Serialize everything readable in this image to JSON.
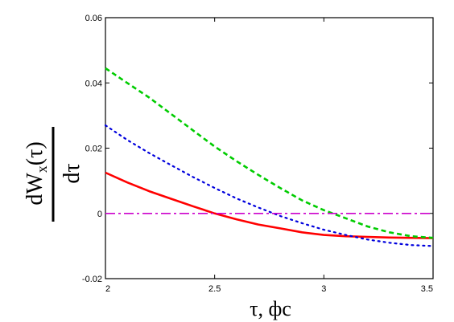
{
  "chart_data": {
    "type": "line",
    "title": "",
    "xlabel": "τ, фс",
    "ylabel": {
      "numerator": "dW",
      "subscript": "x",
      "argument": "(τ)",
      "denominator": "dτ"
    },
    "xlim": [
      2,
      3.5
    ],
    "ylim": [
      -0.02,
      0.06
    ],
    "x_ticks": [
      "2",
      "2.5",
      "3",
      "3.5"
    ],
    "y_ticks": [
      "-0.02",
      "0",
      "0.02",
      "0.04",
      "0.06"
    ],
    "grid": false,
    "legend": "none",
    "series": [
      {
        "color": "#ff0000",
        "style": "solid",
        "x": [
          2.0,
          2.1,
          2.2,
          2.3,
          2.4,
          2.5,
          2.6,
          2.7,
          2.8,
          2.9,
          3.0,
          3.1,
          3.2,
          3.3,
          3.4,
          3.5
        ],
        "y": [
          0.0125,
          0.0095,
          0.0068,
          0.0045,
          0.0022,
          0.0,
          -0.0018,
          -0.0034,
          -0.0046,
          -0.0058,
          -0.0066,
          -0.007,
          -0.0072,
          -0.0074,
          -0.0075,
          -0.0076
        ]
      },
      {
        "color": "#0000dd",
        "style": "dotted",
        "x": [
          2.0,
          2.1,
          2.2,
          2.3,
          2.4,
          2.5,
          2.6,
          2.7,
          2.8,
          2.9,
          3.0,
          3.1,
          3.2,
          3.3,
          3.4,
          3.5
        ],
        "y": [
          0.027,
          0.0225,
          0.0185,
          0.0148,
          0.0112,
          0.0078,
          0.0046,
          0.0018,
          -0.0008,
          -0.003,
          -0.005,
          -0.0066,
          -0.008,
          -0.009,
          -0.0097,
          -0.01
        ]
      },
      {
        "color": "#00cc00",
        "style": "dashed",
        "x": [
          2.0,
          2.1,
          2.2,
          2.3,
          2.4,
          2.5,
          2.6,
          2.7,
          2.8,
          2.9,
          3.0,
          3.1,
          3.2,
          3.3,
          3.4,
          3.5
        ],
        "y": [
          0.0445,
          0.04,
          0.0355,
          0.0305,
          0.0255,
          0.0205,
          0.016,
          0.0118,
          0.0078,
          0.004,
          0.001,
          -0.0015,
          -0.004,
          -0.0058,
          -0.007,
          -0.0075
        ]
      },
      {
        "color": "#cc00cc",
        "style": "dash-dot",
        "x": [
          2.0,
          3.5
        ],
        "y": [
          0.0,
          0.0
        ]
      }
    ]
  }
}
